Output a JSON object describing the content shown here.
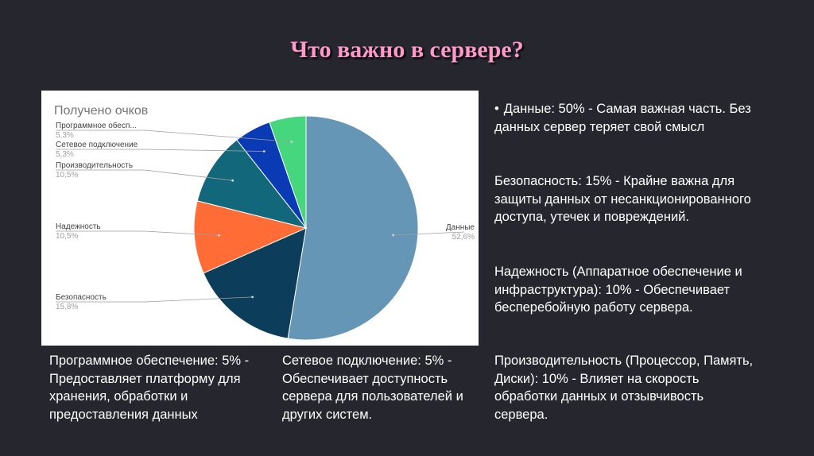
{
  "title": "Что важно в сервере?",
  "chart_data": {
    "type": "pie",
    "title": "Получено очков",
    "slices": [
      {
        "label": "Данные",
        "percent_label": "52,6%",
        "value": 52.6,
        "color": "#6596b5"
      },
      {
        "label": "Безопасность",
        "percent_label": "15,8%",
        "value": 15.8,
        "color": "#0c3d5b"
      },
      {
        "label": "Надежность",
        "percent_label": "10,5%",
        "value": 10.5,
        "color": "#ff6c35"
      },
      {
        "label": "Производительность",
        "percent_label": "10,5%",
        "value": 10.5,
        "color": "#13677a"
      },
      {
        "label": "Сетевое подключение",
        "percent_label": "5,3%",
        "value": 5.3,
        "color": "#0a3bb5"
      },
      {
        "label": "Программное обесп...",
        "percent_label": "5,3%",
        "value": 5.3,
        "color": "#46d77e"
      }
    ]
  },
  "paragraphs": {
    "data": "Данные: 50% - Самая важная часть. Без данных сервер теряет свой смысл",
    "security": "Безопасность: 15% - Крайне важна для защиты данных от несанкционированного доступа, утечек и повреждений.",
    "reliability": "Надежность (Аппаратное обеспечение и инфраструктура): 10% - Обеспечивает бесперебойную работу сервера.",
    "performance": "Производительность (Процессор, Память, Диски): 10% - Влияет на скорость обработки данных и отзывчивость сервера.",
    "software": "Программное обеспечение: 5% - Предоставляет платформу для хранения, обработки и предоставления данных",
    "network": "Сетевое подключение: 5% - Обеспечивает доступность сервера для пользователей и других систем."
  },
  "bullet": "•"
}
